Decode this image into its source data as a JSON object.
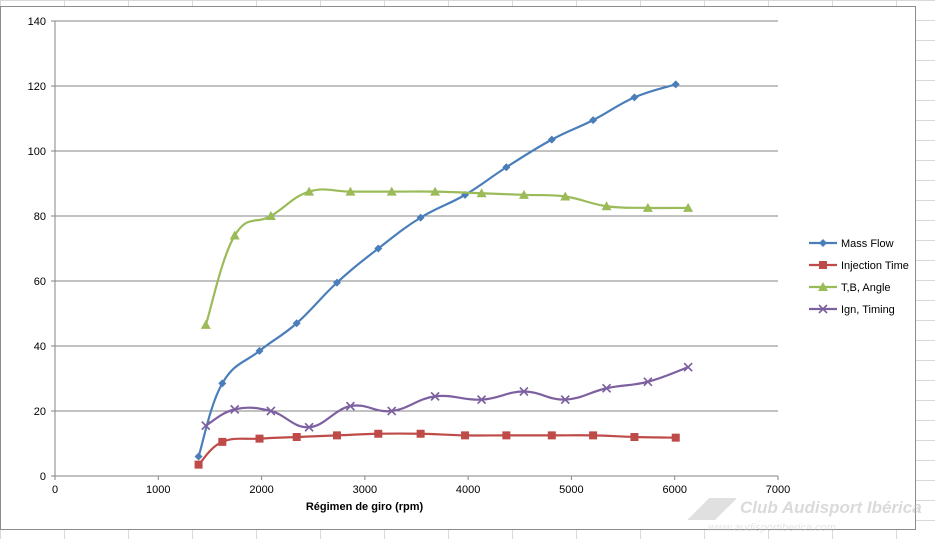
{
  "chart_data": {
    "type": "line",
    "xlabel": "Régimen de giro (rpm)",
    "ylabel": "",
    "xlim": [
      0,
      7000
    ],
    "ylim": [
      0,
      140
    ],
    "x_ticks": [
      0,
      1000,
      2000,
      3000,
      4000,
      5000,
      6000,
      7000
    ],
    "y_ticks": [
      0,
      20,
      40,
      60,
      80,
      100,
      120,
      140
    ],
    "grid": "horizontal",
    "legend_position": "right",
    "series": [
      {
        "name": "Mass Flow",
        "color": "#4a7ebb",
        "marker": "diamond",
        "x": [
          1390,
          1620,
          1980,
          2340,
          2730,
          3130,
          3540,
          3970,
          4370,
          4810,
          5210,
          5610,
          6010
        ],
        "y": [
          6,
          28.5,
          38.5,
          47,
          59.5,
          70,
          79.5,
          86.5,
          95,
          103.5,
          109.5,
          116.5,
          120.5
        ]
      },
      {
        "name": "Injection Time",
        "color": "#be4b48",
        "marker": "square",
        "x": [
          1390,
          1620,
          1980,
          2340,
          2730,
          3130,
          3540,
          3970,
          4370,
          4810,
          5210,
          5610,
          6010
        ],
        "y": [
          3.5,
          10.5,
          11.5,
          12,
          12.5,
          13,
          13,
          12.5,
          12.5,
          12.5,
          12.5,
          12,
          11.8
        ]
      },
      {
        "name": "T,B, Angle",
        "color": "#9bbb59",
        "marker": "triangle",
        "x": [
          1460,
          1740,
          2090,
          2460,
          2860,
          3260,
          3680,
          4130,
          4540,
          4940,
          5340,
          5740,
          6130
        ],
        "y": [
          46.5,
          74,
          80,
          87.5,
          87.5,
          87.5,
          87.5,
          87,
          86.5,
          86,
          83,
          82.5,
          82.5
        ]
      },
      {
        "name": "Ign, Timing",
        "color": "#7d60a0",
        "marker": "x",
        "x": [
          1460,
          1740,
          2090,
          2460,
          2860,
          3260,
          3680,
          4130,
          4540,
          4940,
          5340,
          5740,
          6130
        ],
        "y": [
          15.5,
          20.5,
          20,
          15,
          21.5,
          20,
          24.5,
          23.5,
          26,
          23.5,
          27,
          29,
          33.5
        ]
      }
    ]
  },
  "watermark": {
    "name": "Club Audisport Ibérica",
    "url": "www.audisportiberica.com"
  }
}
